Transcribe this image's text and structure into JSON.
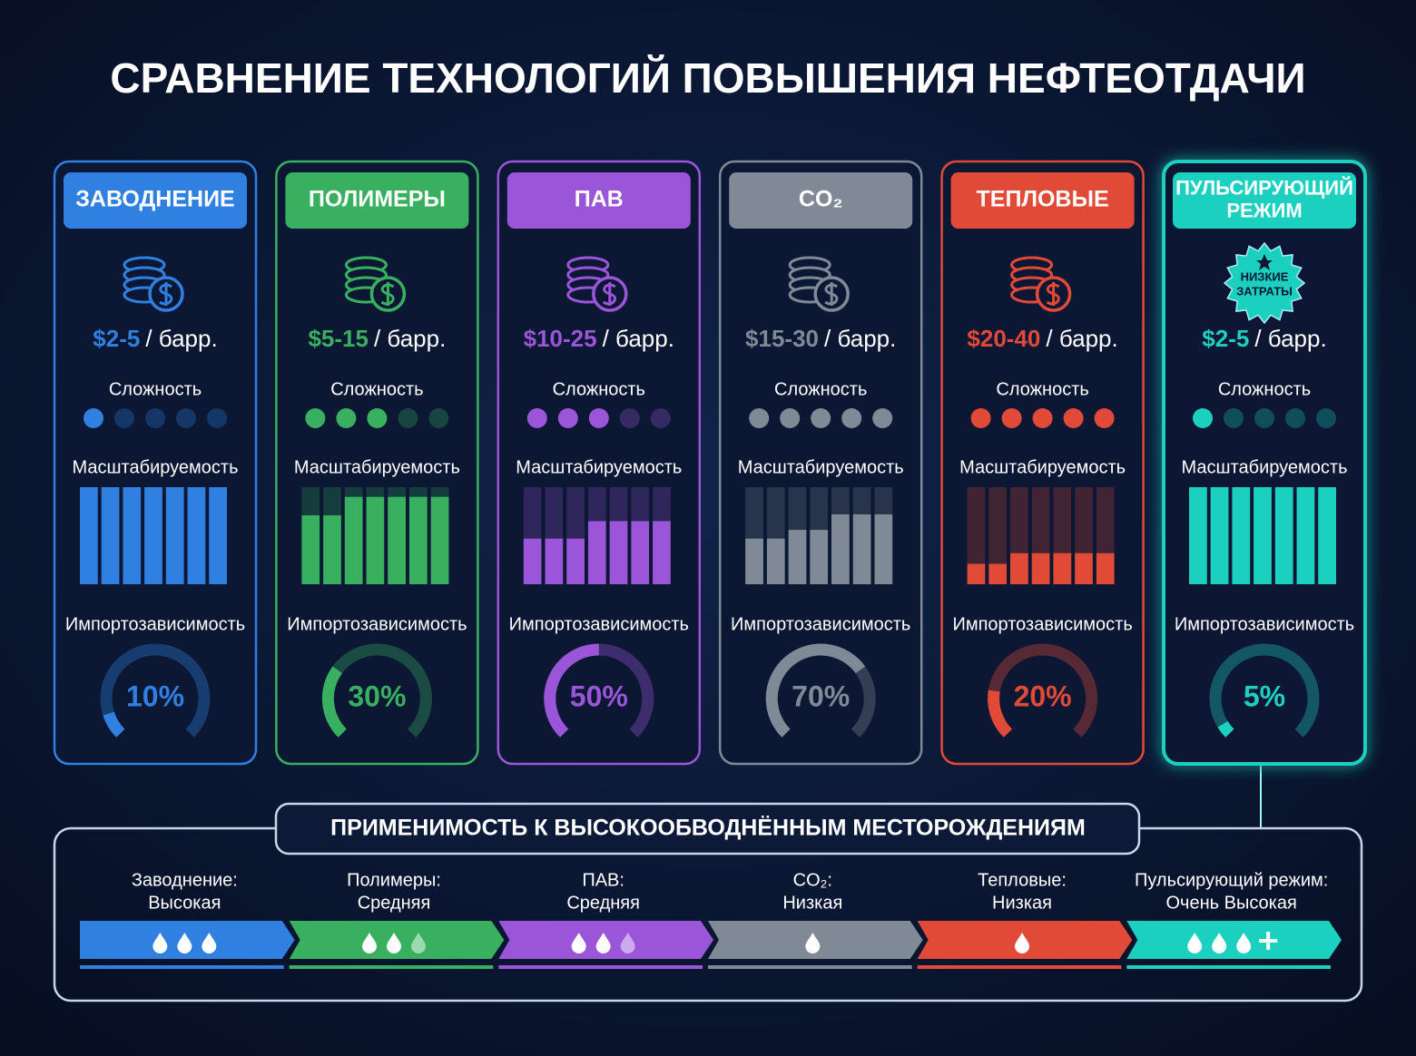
{
  "title": "СРАВНЕНИЕ ТЕХНОЛОГИЙ ПОВЫШЕНИЯ НЕФТЕОТДАЧИ",
  "labels": {
    "complexity": "Сложность",
    "scalability": "Масштабируемость",
    "import_dependence": "Импортозависимость"
  },
  "complexity_scale": 5,
  "scalability_range": [
    0,
    100
  ],
  "technologies": [
    {
      "name_lines": [
        "ЗАВОДНЕНИЕ"
      ],
      "color": "#2f80e0",
      "cost_range": "$2-5",
      "cost_unit": "/ барр.",
      "complexity": 1,
      "scalability": [
        100,
        100,
        100,
        100,
        100,
        100,
        100
      ],
      "import_dependence": 10,
      "import_dependence_label": "10%"
    },
    {
      "name_lines": [
        "ПОЛИМЕРЫ"
      ],
      "color": "#38b060",
      "cost_range": "$5-15",
      "cost_unit": "/ барр.",
      "complexity": 3,
      "scalability": [
        71,
        71,
        90,
        90,
        90,
        90,
        90
      ],
      "import_dependence": 30,
      "import_dependence_label": "30%"
    },
    {
      "name_lines": [
        "ПАВ"
      ],
      "color": "#9b55d8",
      "cost_range": "$10-25",
      "cost_unit": "/ барр.",
      "complexity": 3,
      "scalability": [
        47,
        47,
        47,
        65,
        65,
        65,
        65
      ],
      "import_dependence": 50,
      "import_dependence_label": "50%"
    },
    {
      "name_lines": [
        "CO₂"
      ],
      "color": "#808a96",
      "cost_range": "$15-30",
      "cost_unit": "/ барр.",
      "complexity": 5,
      "scalability": [
        47,
        47,
        56,
        56,
        72,
        72,
        72
      ],
      "import_dependence": 70,
      "import_dependence_label": "70%"
    },
    {
      "name_lines": [
        "ТЕПЛОВЫЕ"
      ],
      "color": "#e24a38",
      "cost_range": "$20-40",
      "cost_unit": "/ барр.",
      "complexity": 5,
      "scalability": [
        21,
        21,
        32,
        32,
        32,
        32,
        32
      ],
      "import_dependence": 20,
      "import_dependence_label": "20%"
    },
    {
      "name_lines": [
        "ПУЛЬСИРУЮЩИЙ",
        "РЕЖИМ"
      ],
      "color": "#1cd0c0",
      "badge": [
        "НИЗКИЕ",
        "ЗАТРАТЫ"
      ],
      "cost_range": "$2-5",
      "cost_unit": "/ барр.",
      "complexity": 1,
      "scalability": [
        100,
        100,
        100,
        100,
        100,
        100,
        100
      ],
      "import_dependence": 5,
      "import_dependence_label": "5%"
    }
  ],
  "applicability": {
    "title": "ПРИМЕНИМОСТЬ К ВЫСОКООБВОДНЁННЫМ МЕСТОРОЖДЕНИЯМ",
    "items": [
      {
        "label": "Заводнение:",
        "level": "Высокая",
        "drops": 3,
        "faded_drops": 0
      },
      {
        "label": "Полимеры:",
        "level": "Средняя",
        "drops": 2,
        "faded_drops": 1
      },
      {
        "label": "ПАВ:",
        "level": "Средняя",
        "drops": 2,
        "faded_drops": 1
      },
      {
        "label": "CO₂:",
        "level": "Низкая",
        "drops": 1,
        "faded_drops": 0
      },
      {
        "label": "Тепловые:",
        "level": "Низкая",
        "drops": 1,
        "faded_drops": 0
      },
      {
        "label": "Пульсирующий режим:",
        "level": "Очень Высокая",
        "drops": 3,
        "faded_drops": 0,
        "plus": true
      }
    ]
  }
}
